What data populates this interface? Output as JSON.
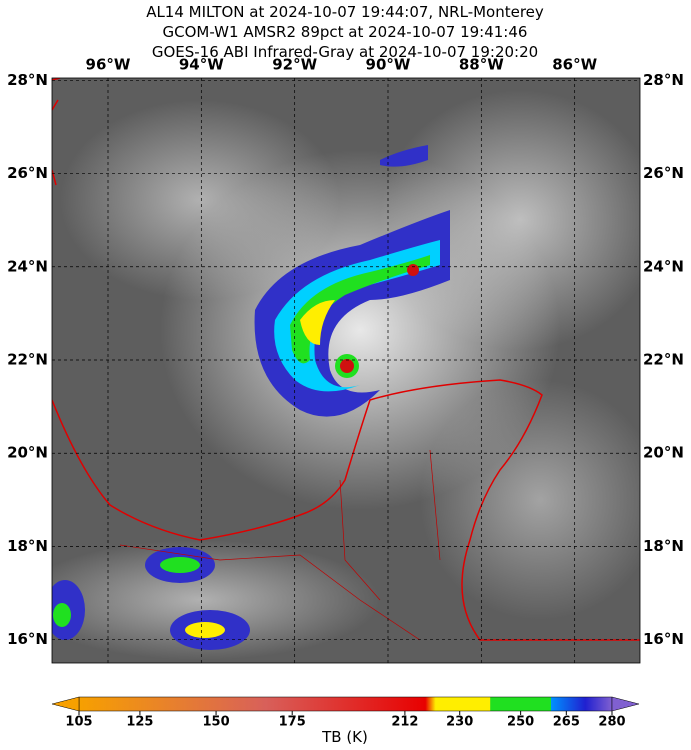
{
  "header": {
    "lines": [
      "AL14 MILTON at 2024-10-07 19:44:07, NRL-Monterey",
      "GCOM-W1 AMSR2 89pct at 2024-10-07 19:41:46",
      "GOES-16 ABI Infrared-Gray at 2024-10-07 19:20:20"
    ]
  },
  "map": {
    "lat_range": [
      15.5,
      28.05
    ],
    "lon_range": [
      -97.2,
      -84.6
    ],
    "lat_ticks": [
      {
        "value": 28,
        "label": "28°N"
      },
      {
        "value": 26,
        "label": "26°N"
      },
      {
        "value": 24,
        "label": "24°N"
      },
      {
        "value": 22,
        "label": "22°N"
      },
      {
        "value": 20,
        "label": "20°N"
      },
      {
        "value": 18,
        "label": "18°N"
      },
      {
        "value": 16,
        "label": "16°N"
      }
    ],
    "lon_ticks": [
      {
        "value": -96,
        "label": "96°W"
      },
      {
        "value": -94,
        "label": "94°W"
      },
      {
        "value": -92,
        "label": "92°W"
      },
      {
        "value": -90,
        "label": "90°W"
      },
      {
        "value": -88,
        "label": "88°W"
      },
      {
        "value": -86,
        "label": "86°W"
      }
    ]
  },
  "colorbar": {
    "lim": [
      105,
      280
    ],
    "ticks": [
      105,
      125,
      150,
      175,
      212,
      230,
      250,
      265,
      280
    ],
    "label": "TB (K)"
  }
}
